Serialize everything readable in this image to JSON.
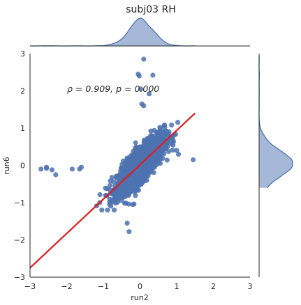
{
  "chart_data": {
    "type": "scatter",
    "title": "subj03 RH",
    "xlabel": "run2",
    "ylabel": "run6",
    "xlim": [
      -3,
      3
    ],
    "ylim": [
      -3,
      3
    ],
    "xticks": [
      "−3",
      "−2",
      "−1",
      "0",
      "1",
      "2",
      "3"
    ],
    "yticks": [
      "−3",
      "−2",
      "−1",
      "0",
      "1",
      "2",
      "3"
    ],
    "grid": false,
    "annotation": "ρ = 0.909, p = 0.000",
    "regression_line": {
      "x": [
        -3.0,
        1.5
      ],
      "y": [
        -2.75,
        1.4
      ],
      "color": "#e41a1c"
    },
    "colors": {
      "points": "#4c72b0",
      "marginal_fill": "#a5b8d8",
      "marginal_line": "#4c72b0"
    },
    "outliers": [
      [
        0.1,
        2.85
      ],
      [
        -0.05,
        2.45
      ],
      [
        -0.02,
        2.4
      ],
      [
        0.35,
        2.42
      ],
      [
        0.02,
        2.05
      ],
      [
        0.05,
        1.65
      ],
      [
        0.1,
        1.6
      ],
      [
        0.25,
        1.92
      ],
      [
        -2.55,
        -0.05
      ],
      [
        -2.7,
        -0.1
      ],
      [
        -2.55,
        -0.08
      ],
      [
        -2.3,
        -0.25
      ],
      [
        -1.85,
        -0.1
      ],
      [
        -1.65,
        -0.1
      ],
      [
        -1.6,
        -0.05
      ],
      [
        -2.4,
        -0.12
      ],
      [
        -0.35,
        -1.55
      ],
      [
        -0.3,
        -1.78
      ],
      [
        -1.1,
        -1.0
      ],
      [
        -0.2,
        -1.05
      ],
      [
        1.45,
        0.15
      ],
      [
        1.0,
        0.4
      ],
      [
        0.9,
        0.55
      ],
      [
        1.05,
        0.3
      ]
    ]
  }
}
